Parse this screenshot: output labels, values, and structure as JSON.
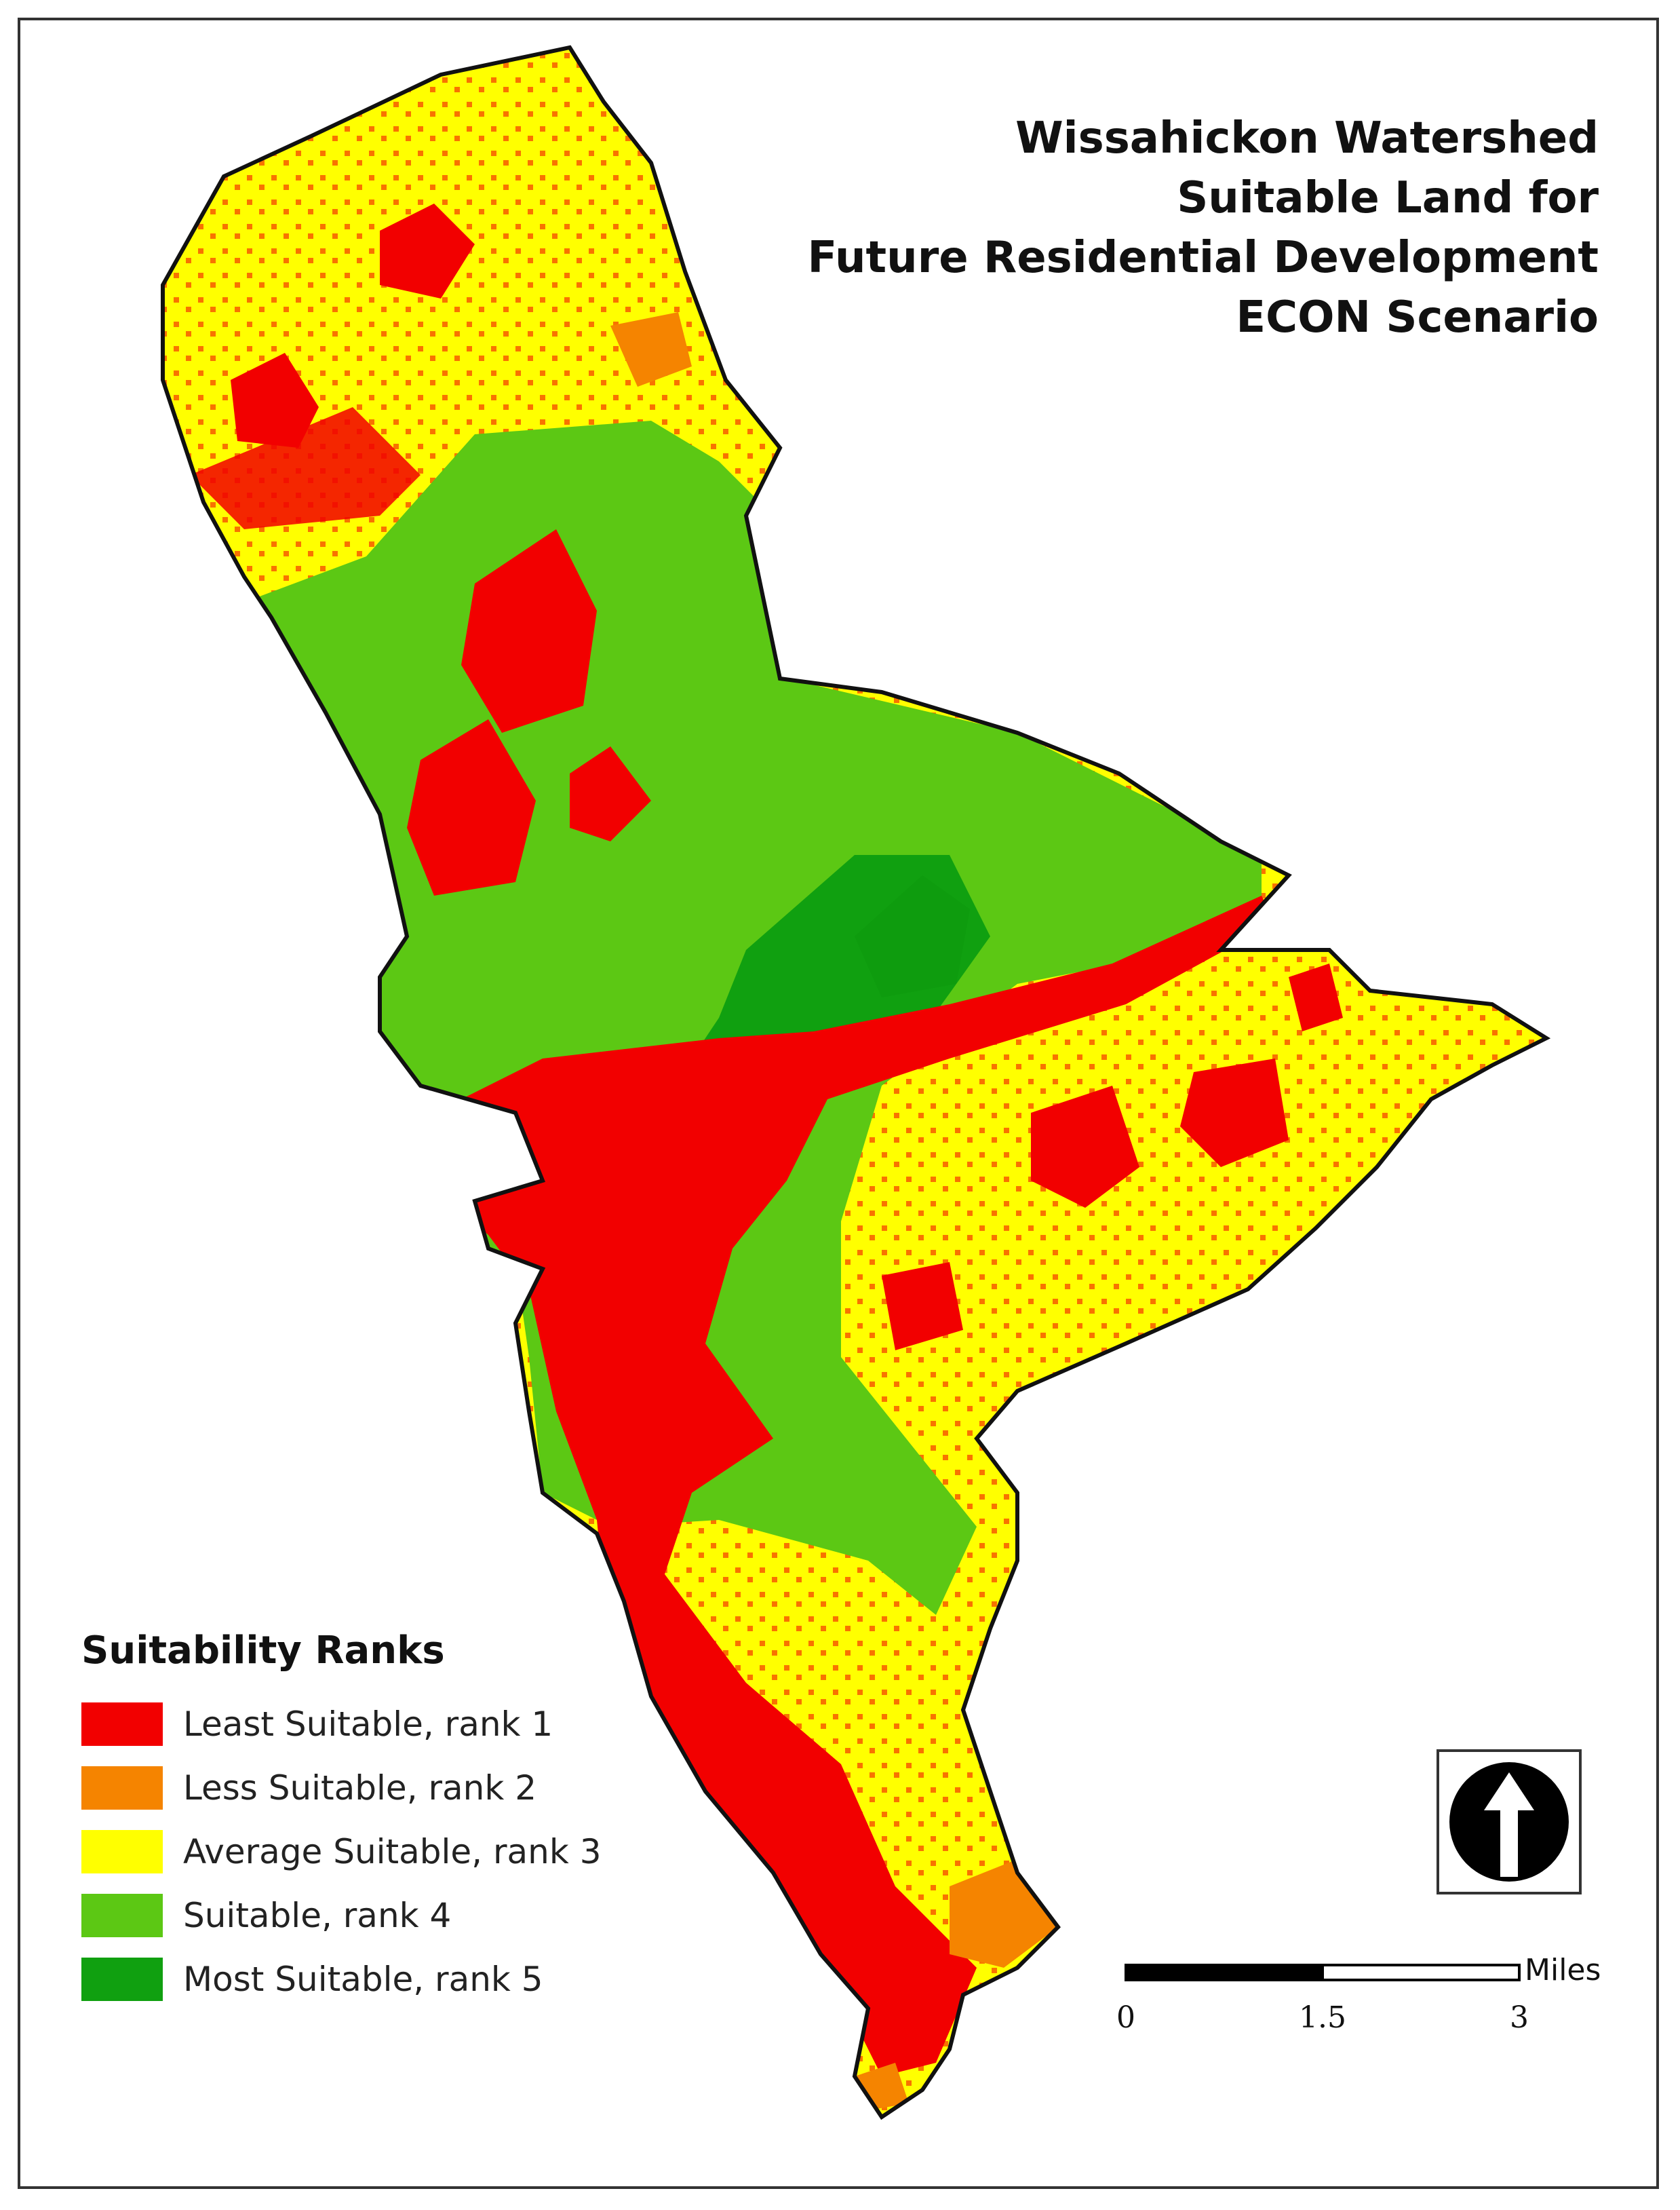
{
  "title_lines": [
    "Wissahickon Watershed",
    "Suitable Land for",
    "Future Residential Development",
    "ECON Scenario"
  ],
  "legend": {
    "title": "Suitability Ranks",
    "items": [
      {
        "label": "Least Suitable, rank 1",
        "color": "#f20000"
      },
      {
        "label": "Less Suitable, rank 2",
        "color": "#f58400"
      },
      {
        "label": "Average Suitable, rank 3",
        "color": "#ffff00"
      },
      {
        "label": "Suitable, rank 4",
        "color": "#5cc814"
      },
      {
        "label": "Most Suitable, rank 5",
        "color": "#10a010"
      }
    ]
  },
  "scale_bar": {
    "unit": "Miles",
    "ticks": [
      "0",
      "1.5",
      "3"
    ]
  },
  "north_arrow": {
    "icon": "north-arrow-icon"
  }
}
